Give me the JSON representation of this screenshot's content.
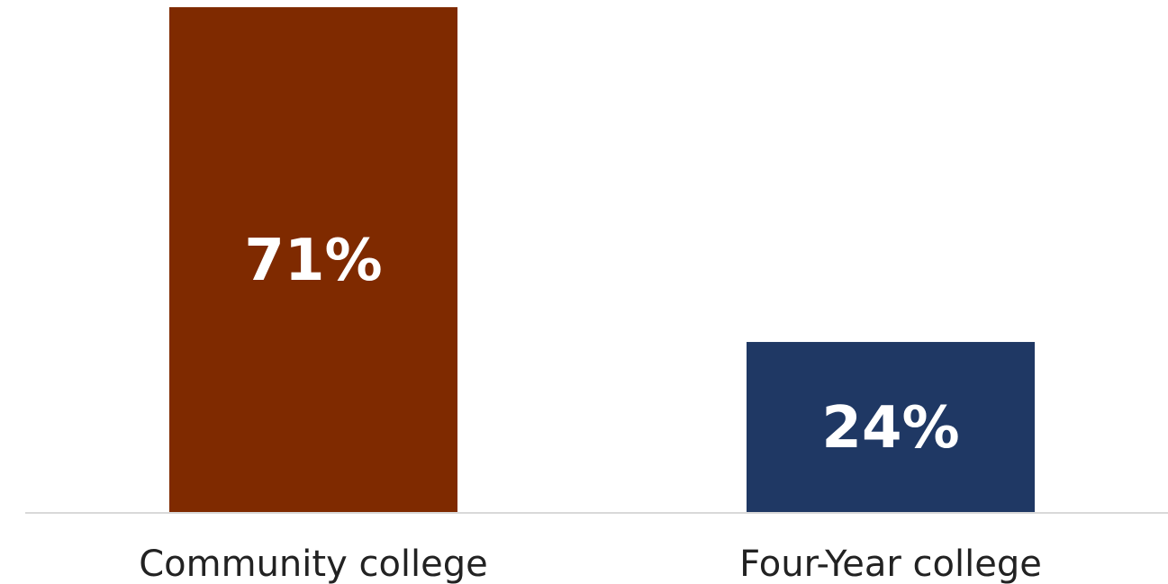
{
  "chart_data": {
    "type": "bar",
    "categories": [
      "Community college",
      "Four-Year college"
    ],
    "values": [
      71,
      24
    ],
    "value_labels": [
      "71%",
      "24%"
    ],
    "colors": [
      "#7f2a00",
      "#1f3864"
    ],
    "title": "",
    "xlabel": "",
    "ylabel": "",
    "ylim": [
      0,
      71
    ],
    "grid": false,
    "legend": "none"
  },
  "colors": {
    "baseline": "#d9d9d9",
    "bar_label": "#ffffff",
    "category_label": "#222222"
  }
}
